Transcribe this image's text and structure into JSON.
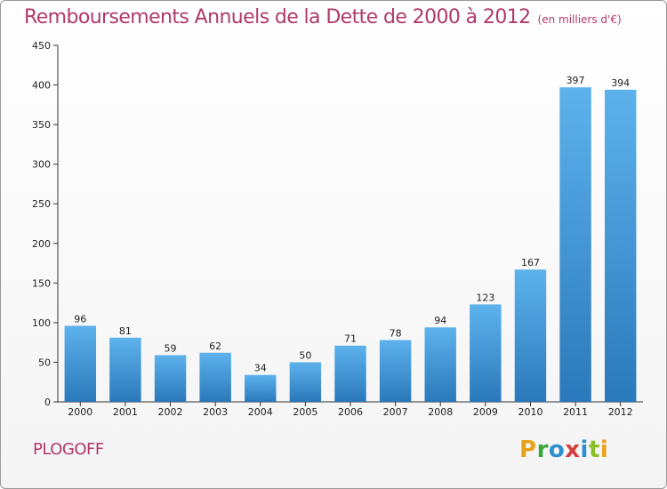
{
  "title": "Remboursements Annuels de la Dette de 2000 à 2012",
  "subtitle": "(en milliers d'€)",
  "commune": "PLOGOFF",
  "brand": {
    "letters": [
      "P",
      "r",
      "o",
      "x",
      "i",
      "t",
      "i"
    ],
    "colors": [
      "#e9a21c",
      "#3aa63a",
      "#2f8fd0",
      "#d23f3f",
      "#2f8fd0",
      "#8bbf2a",
      "#e9a21c"
    ]
  },
  "colors": {
    "title": "#b03a6a",
    "bar_top": "#5db2ec",
    "bar_bottom": "#2a79bb",
    "grid": "#cccccc"
  },
  "chart_data": {
    "type": "bar",
    "title": "Remboursements Annuels de la Dette de 2000 à 2012",
    "subtitle": "(en milliers d'€)",
    "categories": [
      "2000",
      "2001",
      "2002",
      "2003",
      "2004",
      "2005",
      "2006",
      "2007",
      "2008",
      "2009",
      "2010",
      "2011",
      "2012"
    ],
    "values": [
      96,
      81,
      59,
      62,
      34,
      50,
      71,
      78,
      94,
      123,
      167,
      397,
      394
    ],
    "ylim": [
      0,
      450
    ],
    "yticks": [
      0,
      50,
      100,
      150,
      200,
      250,
      300,
      350,
      400,
      450
    ],
    "grid": false,
    "legend": "none"
  }
}
